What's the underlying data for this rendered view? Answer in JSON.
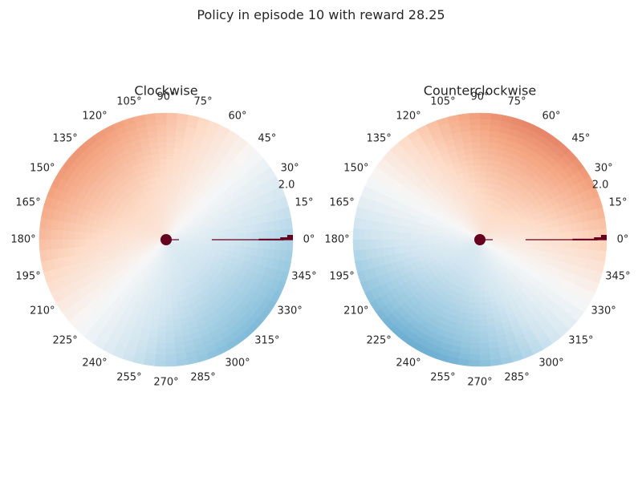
{
  "figure": {
    "suptitle": "Policy in episode 10 with reward 28.25"
  },
  "chart_data": [
    {
      "type": "heatmap",
      "projection": "polar",
      "title": "Clockwise",
      "theta_ticks": [
        "0°",
        "15°",
        "30°",
        "45°",
        "60°",
        "75°",
        "90°",
        "105°",
        "120°",
        "135°",
        "150°",
        "165°",
        "180°",
        "195°",
        "210°",
        "225°",
        "240°",
        "255°",
        "270°",
        "285°",
        "300°",
        "315°",
        "330°",
        "345°"
      ],
      "r_tick_labels": [
        "2.0"
      ],
      "r_max": 2.1,
      "colormap": "RdBu_r",
      "value_range": [
        -1,
        1
      ],
      "field": {
        "peak_angle_deg": 135,
        "trough_angle_deg": 315,
        "amplitude": 0.45,
        "radial_boost": 0.55
      },
      "marker_color": "#67001f",
      "grid": false
    },
    {
      "type": "heatmap",
      "projection": "polar",
      "title": "Counterclockwise",
      "theta_ticks": [
        "0°",
        "15°",
        "30°",
        "45°",
        "60°",
        "75°",
        "90°",
        "105°",
        "120°",
        "135°",
        "150°",
        "165°",
        "180°",
        "195°",
        "210°",
        "225°",
        "240°",
        "255°",
        "270°",
        "285°",
        "300°",
        "315°",
        "330°",
        "345°"
      ],
      "r_tick_labels": [
        "2.0"
      ],
      "r_max": 2.1,
      "colormap": "RdBu_r",
      "value_range": [
        -1,
        1
      ],
      "field": {
        "peak_angle_deg": 60,
        "trough_angle_deg": 240,
        "amplitude": 0.5,
        "radial_boost": 0.55
      },
      "marker_color": "#67001f",
      "grid": false
    }
  ]
}
